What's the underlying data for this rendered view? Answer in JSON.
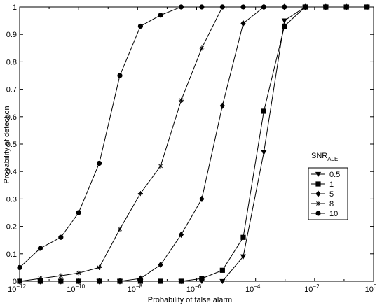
{
  "chart_data": {
    "type": "line",
    "title": "",
    "xlabel": "Probability of false alarm",
    "ylabel": "Probability of detection",
    "xscale": "log",
    "xlim": [
      1e-12,
      1
    ],
    "ylim": [
      0,
      1
    ],
    "grid": false,
    "legend_position": "right",
    "legend_title": {
      "main": "SNR",
      "sub": "ALE"
    },
    "x_ticks": [
      {
        "value": 1e-12,
        "base": "10",
        "exp": "−12"
      },
      {
        "value": 1e-10,
        "base": "10",
        "exp": "−10"
      },
      {
        "value": 1e-08,
        "base": "10",
        "exp": "−8"
      },
      {
        "value": 1e-06,
        "base": "10",
        "exp": "−6"
      },
      {
        "value": 0.0001,
        "base": "10",
        "exp": "−4"
      },
      {
        "value": 0.01,
        "base": "10",
        "exp": "−2"
      },
      {
        "value": 1,
        "base": "10",
        "exp": "0"
      }
    ],
    "y_ticks": [
      "0",
      "0.1",
      "0.2",
      "0.3",
      "0.4",
      "0.5",
      "0.6",
      "0.7",
      "0.8",
      "0.9",
      "1"
    ],
    "series": [
      {
        "name": "0.5",
        "marker": "triangle-down",
        "x": [
          1e-12,
          5e-12,
          2.5e-11,
          1e-10,
          5e-10,
          2.5e-09,
          1.25e-08,
          6e-08,
          3e-07,
          1.5e-06,
          7.5e-06,
          3.8e-05,
          0.00019,
          0.00095,
          0.0048,
          0.024,
          0.12,
          0.6
        ],
        "y": [
          0,
          0,
          0,
          0,
          0,
          0,
          0,
          0,
          0,
          0,
          0,
          0.09,
          0.47,
          0.95,
          1,
          1,
          1,
          1
        ]
      },
      {
        "name": "1",
        "marker": "square",
        "x": [
          1e-12,
          5e-12,
          2.5e-11,
          1e-10,
          5e-10,
          2.5e-09,
          1.25e-08,
          6e-08,
          3e-07,
          1.5e-06,
          7.5e-06,
          3.8e-05,
          0.00019,
          0.00095,
          0.0048,
          0.024,
          0.12,
          0.6
        ],
        "y": [
          0,
          0,
          0,
          0,
          0,
          0,
          0,
          0,
          0,
          0.01,
          0.04,
          0.16,
          0.62,
          0.93,
          1,
          1,
          1,
          1
        ]
      },
      {
        "name": "5",
        "marker": "diamond",
        "x": [
          1e-12,
          5e-12,
          2.5e-11,
          1e-10,
          5e-10,
          2.5e-09,
          1.25e-08,
          6e-08,
          3e-07,
          1.5e-06,
          7.5e-06,
          3.8e-05,
          0.00019,
          0.00095,
          0.0048,
          0.024,
          0.12,
          0.6
        ],
        "y": [
          0,
          0,
          0,
          0,
          0,
          0,
          0.01,
          0.06,
          0.17,
          0.3,
          0.64,
          0.94,
          1,
          1,
          1,
          1,
          1,
          1
        ]
      },
      {
        "name": "8",
        "marker": "asterisk",
        "x": [
          1e-12,
          5e-12,
          2.5e-11,
          1e-10,
          5e-10,
          2.5e-09,
          1.25e-08,
          6e-08,
          3e-07,
          1.5e-06,
          7.5e-06,
          3.8e-05,
          0.00019,
          0.00095,
          0.0048,
          0.024,
          0.12,
          0.6
        ],
        "y": [
          0,
          0.01,
          0.02,
          0.03,
          0.05,
          0.19,
          0.32,
          0.42,
          0.66,
          0.85,
          1,
          1,
          1,
          1,
          1,
          1,
          1,
          1
        ]
      },
      {
        "name": "10",
        "marker": "circle",
        "x": [
          1e-12,
          5e-12,
          2.5e-11,
          1e-10,
          5e-10,
          2.5e-09,
          1.25e-08,
          6e-08,
          3e-07,
          1.5e-06,
          7.5e-06,
          3.8e-05,
          0.00019,
          0.00095,
          0.0048,
          0.024,
          0.12,
          0.6
        ],
        "y": [
          0.05,
          0.12,
          0.16,
          0.25,
          0.43,
          0.75,
          0.93,
          0.97,
          1,
          1,
          1,
          1,
          1,
          1,
          1,
          1,
          1,
          1
        ]
      }
    ]
  }
}
